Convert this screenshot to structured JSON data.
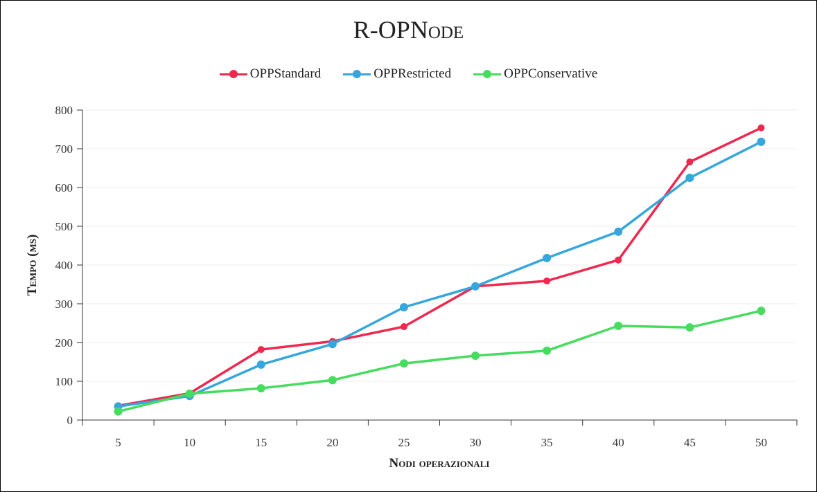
{
  "chart_data": {
    "type": "line",
    "title": "R-OPNode",
    "xlabel": "Nodi operazionali",
    "ylabel": "Tempo (ms)",
    "x": [
      5,
      10,
      15,
      20,
      25,
      30,
      35,
      40,
      45,
      50
    ],
    "ylim": [
      0,
      800
    ],
    "yticks": [
      0,
      100,
      200,
      300,
      400,
      500,
      600,
      700,
      800
    ],
    "grid": true,
    "legend_position": "top-center",
    "series": [
      {
        "name": "OPPStandard",
        "color": "#f0284f",
        "values": [
          37,
          69,
          182,
          203,
          241,
          345,
          359,
          413,
          666,
          754
        ]
      },
      {
        "name": "OPPRestricted",
        "color": "#35a7dc",
        "values": [
          35,
          62,
          143,
          196,
          291,
          345,
          418,
          486,
          625,
          718
        ]
      },
      {
        "name": "OPPConservative",
        "color": "#46dc5e",
        "values": [
          22,
          68,
          82,
          103,
          146,
          166,
          179,
          243,
          239,
          282
        ]
      }
    ]
  }
}
